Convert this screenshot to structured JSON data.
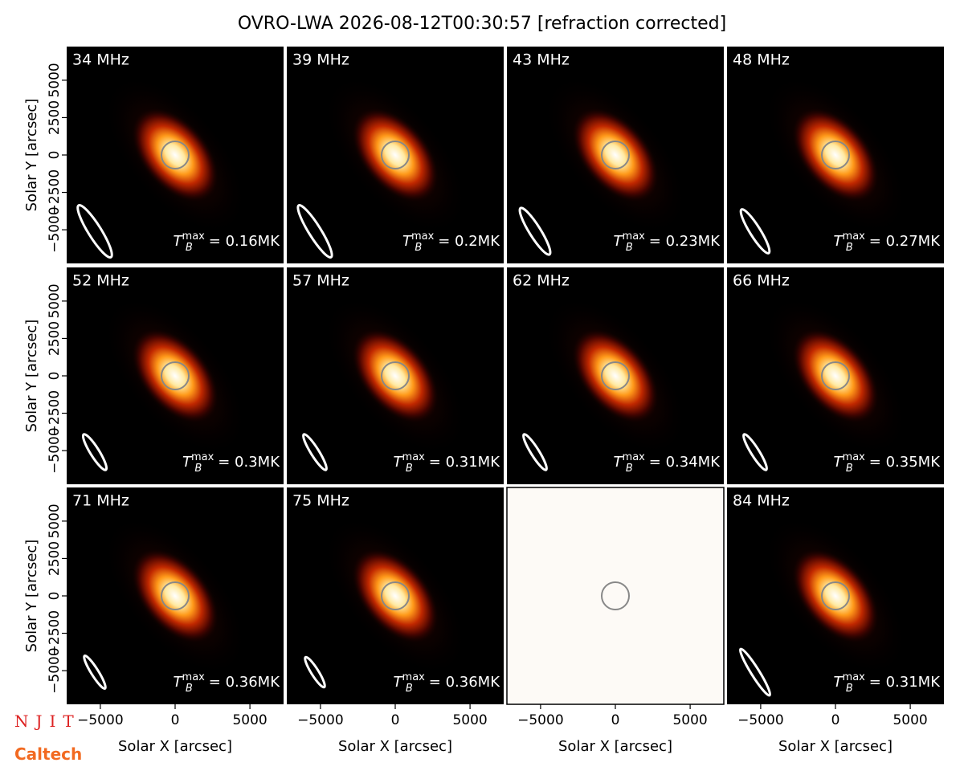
{
  "chart_data": {
    "type": "image_grid",
    "title": "OVRO-LWA 2026-08-12T00:30:57 [refraction corrected]",
    "xlabel": "Solar X [arcsec]",
    "ylabel": "Solar Y [arcsec]",
    "xlim": [
      -7250,
      7250
    ],
    "ylim": [
      -7250,
      7250
    ],
    "xticks": [
      {
        "value": -5000,
        "label": "−5000"
      },
      0,
      5000
    ],
    "yticks": [
      {
        "value": -5000,
        "label": "−5000"
      },
      {
        "value": -2500,
        "label": "−2500"
      },
      0,
      2500,
      5000
    ],
    "logos": [
      "NJIT",
      "Caltech"
    ],
    "panels": [
      {
        "title": "34 MHz",
        "annotation": {
          "symbol": "T",
          "subscript": "B",
          "superscript": "max",
          "text": "= 0.16MK"
        }
      },
      {
        "title": "39 MHz",
        "annotation": {
          "symbol": "T",
          "subscript": "B",
          "superscript": "max",
          "text": "= 0.2MK"
        }
      },
      {
        "title": "43 MHz",
        "annotation": {
          "symbol": "T",
          "subscript": "B",
          "superscript": "max",
          "text": "= 0.23MK"
        }
      },
      {
        "title": "48 MHz",
        "annotation": {
          "symbol": "T",
          "subscript": "B",
          "superscript": "max",
          "text": "= 0.27MK"
        }
      },
      {
        "title": "52 MHz",
        "annotation": {
          "symbol": "T",
          "subscript": "B",
          "superscript": "max",
          "text": "= 0.3MK"
        }
      },
      {
        "title": "57 MHz",
        "annotation": {
          "symbol": "T",
          "subscript": "B",
          "superscript": "max",
          "text": "= 0.31MK"
        }
      },
      {
        "title": "62 MHz",
        "annotation": {
          "symbol": "T",
          "subscript": "B",
          "superscript": "max",
          "text": "= 0.34MK"
        }
      },
      {
        "title": "66 MHz",
        "annotation": {
          "symbol": "T",
          "subscript": "B",
          "superscript": "max",
          "text": "= 0.35MK"
        }
      },
      {
        "title": "71 MHz",
        "annotation": {
          "symbol": "T",
          "subscript": "B",
          "superscript": "max",
          "text": "= 0.36MK"
        }
      },
      {
        "title": "75 MHz",
        "annotation": {
          "symbol": "T",
          "subscript": "B",
          "superscript": "max",
          "text": "= 0.36MK"
        }
      },
      {
        "title": null,
        "annotation": null,
        "empty": true
      },
      {
        "title": "84 MHz",
        "annotation": {
          "symbol": "T",
          "subscript": "B",
          "superscript": "max",
          "text": "= 0.31MK"
        }
      }
    ]
  }
}
